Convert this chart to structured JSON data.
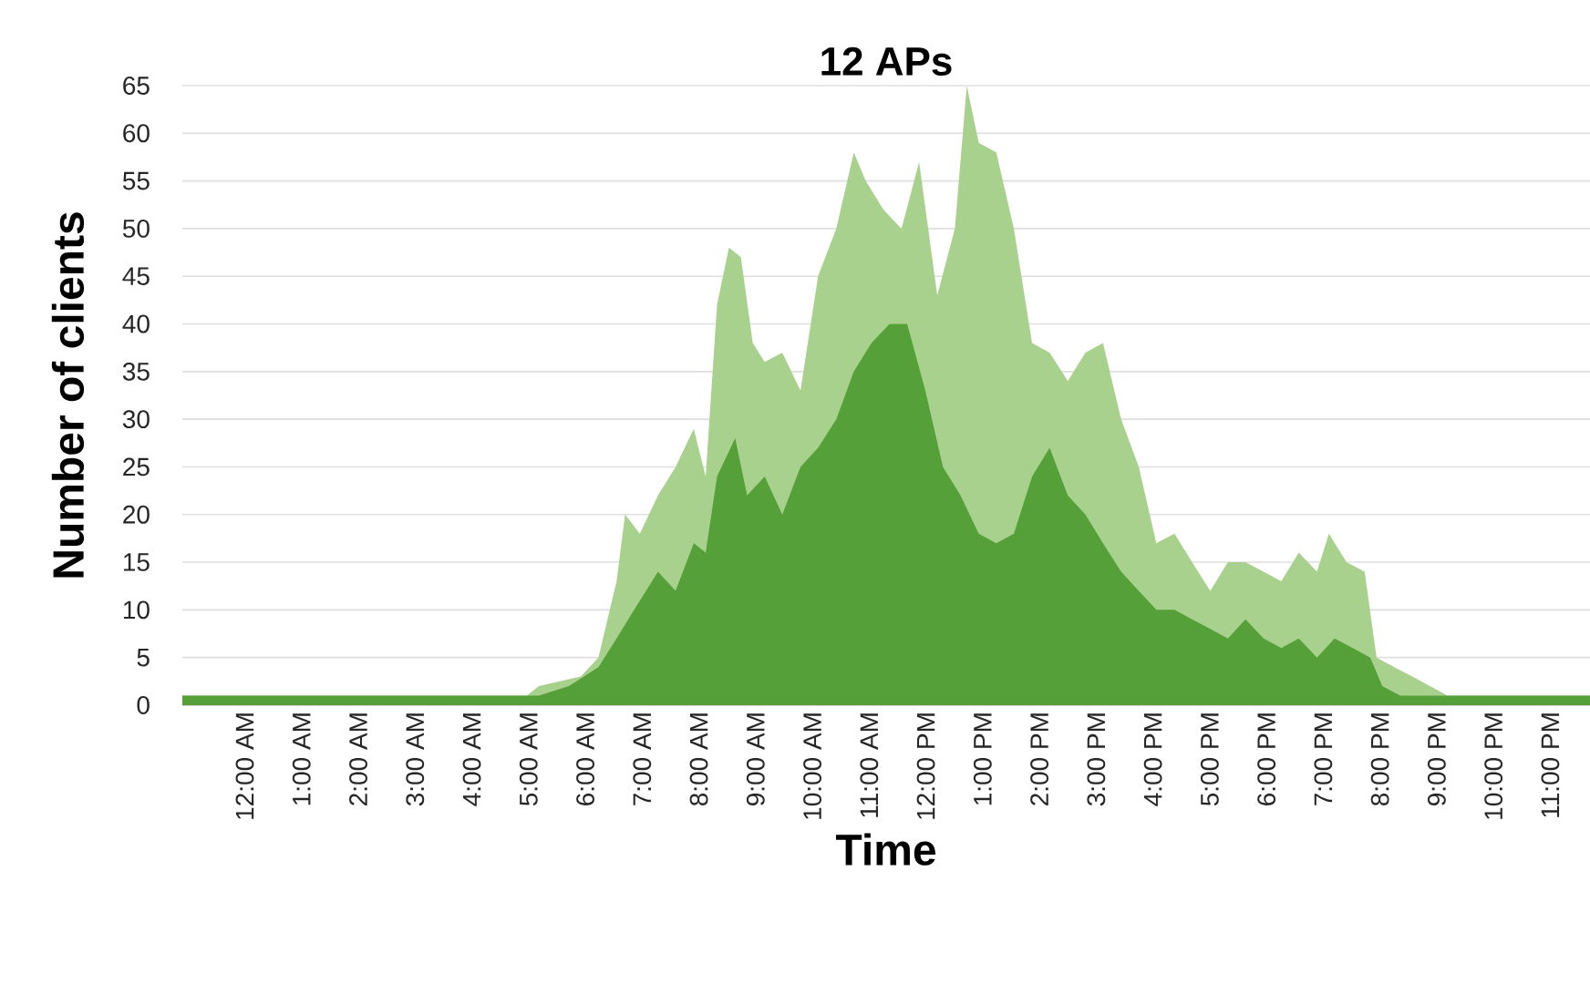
{
  "chart_data": {
    "type": "area",
    "title": "12 APs",
    "xlabel": "Time",
    "ylabel": "Number of clients",
    "xlim": [
      -1.1,
      23.7
    ],
    "ylim": [
      0,
      65
    ],
    "yticks": [
      0,
      5,
      10,
      15,
      20,
      25,
      30,
      35,
      40,
      45,
      50,
      55,
      60,
      65
    ],
    "xticks": [
      {
        "value": 0,
        "label": "12:00 AM"
      },
      {
        "value": 1,
        "label": "1:00 AM"
      },
      {
        "value": 2,
        "label": "2:00 AM"
      },
      {
        "value": 3,
        "label": "3:00 AM"
      },
      {
        "value": 4,
        "label": "4:00 AM"
      },
      {
        "value": 5,
        "label": "5:00 AM"
      },
      {
        "value": 6,
        "label": "6:00 AM"
      },
      {
        "value": 7,
        "label": "7:00 AM"
      },
      {
        "value": 8,
        "label": "8:00 AM"
      },
      {
        "value": 9,
        "label": "9:00 AM"
      },
      {
        "value": 10,
        "label": "10:00 AM"
      },
      {
        "value": 11,
        "label": "11:00 AM"
      },
      {
        "value": 12,
        "label": "12:00 PM"
      },
      {
        "value": 13,
        "label": "1:00 PM"
      },
      {
        "value": 14,
        "label": "2:00 PM"
      },
      {
        "value": 15,
        "label": "3:00 PM"
      },
      {
        "value": 16,
        "label": "4:00 PM"
      },
      {
        "value": 17,
        "label": "5:00 PM"
      },
      {
        "value": 18,
        "label": "6:00 PM"
      },
      {
        "value": 19,
        "label": "7:00 PM"
      },
      {
        "value": 20,
        "label": "8:00 PM"
      },
      {
        "value": 21,
        "label": "9:00 PM"
      },
      {
        "value": 22,
        "label": "10:00 PM"
      },
      {
        "value": 23,
        "label": "11:00 PM"
      }
    ],
    "grid": "y",
    "series": [
      {
        "color": "#a9d18e",
        "x": [
          -1.1,
          4.97,
          5.18,
          5.92,
          6.23,
          6.55,
          6.7,
          6.96,
          7.28,
          7.59,
          7.91,
          8.12,
          8.32,
          8.53,
          8.74,
          8.95,
          9.16,
          9.47,
          9.79,
          10.1,
          10.42,
          10.73,
          10.94,
          11.25,
          11.57,
          11.88,
          12.2,
          12.51,
          12.72,
          12.93,
          13.24,
          13.55,
          13.87,
          14.18,
          14.5,
          14.81,
          15.12,
          15.44,
          15.75,
          16.06,
          16.38,
          16.69,
          17.01,
          17.32,
          17.63,
          17.95,
          18.26,
          18.57,
          18.89,
          19.1,
          19.41,
          19.73,
          19.94,
          20.25,
          20.57,
          20.88,
          21.19,
          23.7
        ],
        "values": [
          1,
          1,
          2,
          3,
          5,
          13,
          20,
          18,
          22,
          25,
          29,
          24,
          42,
          48,
          47,
          38,
          36,
          37,
          33,
          45,
          50,
          58,
          55,
          52,
          50,
          57,
          43,
          50,
          65,
          59,
          58,
          50,
          38,
          37,
          34,
          37,
          38,
          30,
          25,
          17,
          18,
          15,
          12,
          15,
          15,
          14,
          13,
          16,
          14,
          18,
          15,
          14,
          5,
          4,
          3,
          2,
          1,
          1
        ]
      },
      {
        "color": "#56a03a",
        "x": [
          -1.1,
          5.18,
          5.71,
          6.23,
          6.55,
          6.86,
          7.28,
          7.59,
          7.91,
          8.12,
          8.32,
          8.64,
          8.85,
          9.16,
          9.47,
          9.79,
          10.1,
          10.42,
          10.73,
          11.04,
          11.36,
          11.67,
          11.99,
          12.3,
          12.61,
          12.93,
          13.24,
          13.55,
          13.87,
          14.18,
          14.5,
          14.81,
          15.12,
          15.44,
          15.75,
          16.06,
          16.38,
          16.69,
          17.01,
          17.32,
          17.63,
          17.95,
          18.26,
          18.57,
          18.89,
          19.2,
          19.52,
          19.83,
          20.04,
          20.36,
          23.7
        ],
        "values": [
          1,
          1,
          2,
          4,
          7,
          10,
          14,
          12,
          17,
          16,
          24,
          28,
          22,
          24,
          20,
          25,
          27,
          30,
          35,
          38,
          40,
          40,
          33,
          25,
          22,
          18,
          17,
          18,
          24,
          27,
          22,
          20,
          17,
          14,
          12,
          10,
          10,
          9,
          8,
          7,
          9,
          7,
          6,
          7,
          5,
          7,
          6,
          5,
          2,
          1,
          1
        ]
      }
    ]
  }
}
